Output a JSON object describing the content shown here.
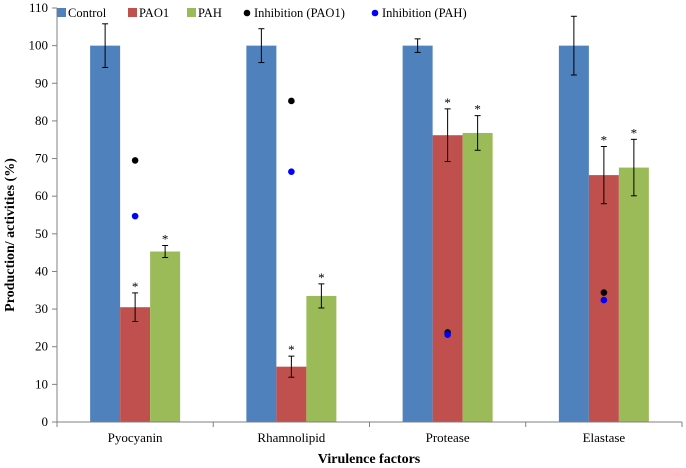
{
  "chart_data": {
    "type": "bar",
    "title": "",
    "xlabel": "Virulence factors",
    "ylabel": "Production/ activities (%)",
    "ylim": [
      0,
      110
    ],
    "yticks": [
      0,
      10,
      20,
      30,
      40,
      50,
      60,
      70,
      80,
      90,
      100,
      110
    ],
    "categories": [
      "Pyocyanin",
      "Rhamnolipid",
      "Protease",
      "Elastase"
    ],
    "series": [
      {
        "name": "Control",
        "color": "#4F81BD",
        "values": [
          100,
          100,
          100,
          100
        ],
        "errors": [
          5.8,
          4.5,
          1.8,
          7.8
        ],
        "significance": [
          "",
          "",
          "",
          ""
        ]
      },
      {
        "name": "PAO1",
        "color": "#C0504D",
        "values": [
          30.5,
          14.7,
          76.2,
          65.6
        ],
        "errors": [
          3.8,
          2.8,
          7.0,
          7.6
        ],
        "significance": [
          "*",
          "*",
          "*",
          "*"
        ]
      },
      {
        "name": "PAH",
        "color": "#9BBB59",
        "values": [
          45.3,
          33.5,
          76.8,
          67.6
        ],
        "errors": [
          1.6,
          3.2,
          4.6,
          7.5
        ],
        "significance": [
          "*",
          "*",
          "*",
          "*"
        ]
      }
    ],
    "points": [
      {
        "name": "Inhibition (PAO1)",
        "color": "#000000",
        "values": [
          69.5,
          85.3,
          23.8,
          34.4
        ]
      },
      {
        "name": "Inhibition (PAH)",
        "color": "#0000FF",
        "values": [
          54.7,
          66.5,
          23.2,
          32.4
        ]
      }
    ],
    "legend_position": "top"
  }
}
